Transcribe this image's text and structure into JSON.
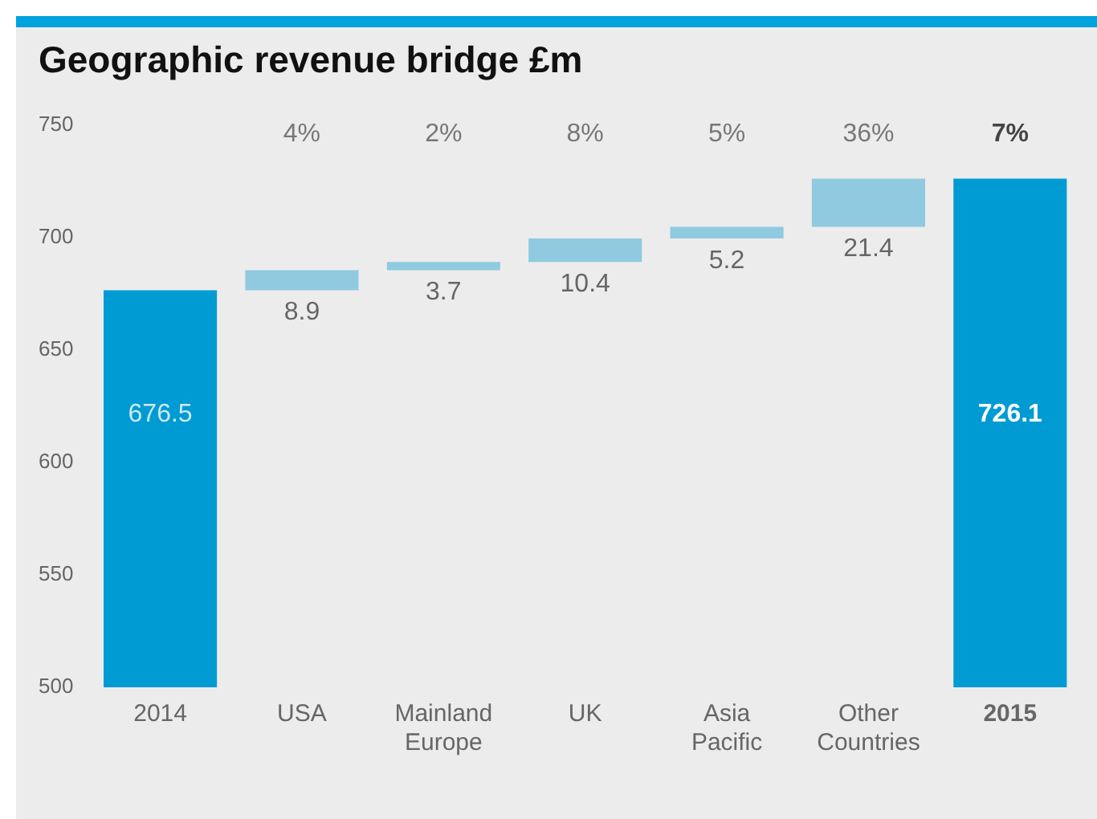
{
  "chart_data": {
    "type": "bar",
    "title": "Geographic revenue bridge £m",
    "categories": [
      "2014",
      "USA",
      "Mainland Europe",
      "UK",
      "Asia Pacific",
      "Other Countries",
      "2015"
    ],
    "values": [
      676.5,
      8.9,
      3.7,
      10.4,
      5.2,
      21.4,
      726.1
    ],
    "base": [
      0,
      676.5,
      685.4,
      689.1,
      699.5,
      704.7,
      0
    ],
    "colors": [
      "#009bd2",
      "#8fcae0",
      "#8fcae0",
      "#8fcae0",
      "#8fcae0",
      "#8fcae0",
      "#009bd2"
    ],
    "ylim": [
      500,
      750
    ],
    "yticks": [
      500,
      550,
      600,
      650,
      700,
      750
    ],
    "grid": false,
    "legend": false,
    "data_labels": true,
    "annotations": [
      "4%",
      "2%",
      "8%",
      "5%",
      "36%",
      "7%"
    ]
  }
}
